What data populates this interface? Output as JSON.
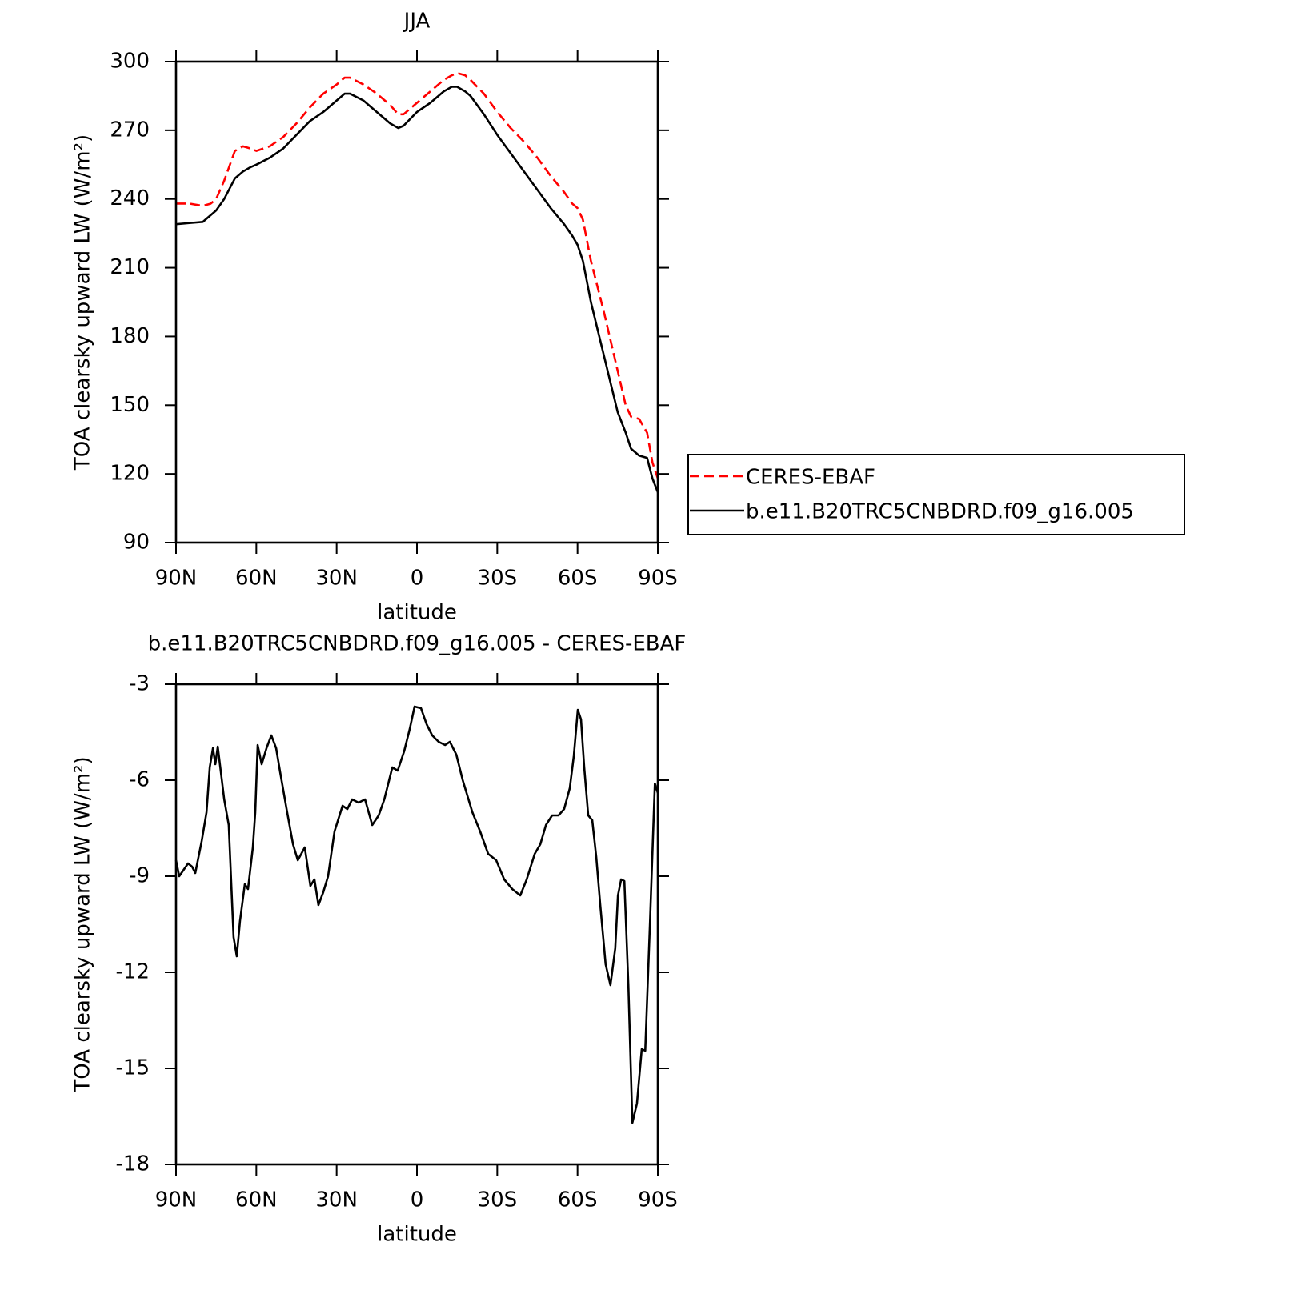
{
  "chart_data": [
    {
      "type": "line",
      "title": "JJA",
      "xlabel": "latitude",
      "ylabel": "TOA clearsky upward LW (W/m²)",
      "x": [
        90,
        85,
        80,
        77,
        75,
        72,
        68,
        65,
        62,
        60,
        55,
        50,
        45,
        40,
        35,
        30,
        27,
        25,
        20,
        15,
        10,
        7,
        5,
        0,
        -5,
        -10,
        -13,
        -15,
        -18,
        -20,
        -25,
        -30,
        -35,
        -40,
        -45,
        -50,
        -55,
        -58,
        -60,
        -62,
        -65,
        -70,
        -75,
        -78,
        -80,
        -83,
        -86,
        -88,
        -90
      ],
      "series": [
        {
          "name": "CERES-EBAF",
          "color": "#ff0000",
          "line_style": "dashed",
          "values": [
            238,
            238,
            237,
            238,
            240,
            248,
            261,
            263,
            262,
            261,
            263,
            267,
            273,
            280,
            286,
            290,
            293,
            293,
            290,
            286,
            281,
            277,
            277,
            282,
            287,
            292,
            294,
            295,
            294,
            292,
            286,
            278,
            271,
            265,
            258,
            250,
            243,
            238,
            236,
            231,
            213,
            190,
            165,
            150,
            145,
            144,
            138,
            125,
            118
          ]
        },
        {
          "name": "b.e11.B20TRC5CNBDRD.f09_g16.005",
          "color": "#000000",
          "line_style": "solid",
          "values": [
            229,
            229.5,
            230,
            233,
            235,
            240,
            249,
            252,
            254,
            255,
            258,
            262,
            268,
            274,
            278,
            283,
            286,
            286,
            283,
            278,
            273,
            271,
            272,
            278,
            282,
            287,
            289,
            289,
            287,
            285,
            277,
            268,
            260,
            252,
            244,
            236,
            229,
            224,
            220,
            213,
            195,
            171,
            147,
            138,
            131,
            128,
            127,
            118,
            112
          ]
        }
      ],
      "xlim": [
        90,
        -90
      ],
      "ylim": [
        90,
        300
      ],
      "xticks": [
        {
          "value": 90,
          "label": "90N"
        },
        {
          "value": 60,
          "label": "60N"
        },
        {
          "value": 30,
          "label": "30N"
        },
        0,
        {
          "value": -30,
          "label": "30S"
        },
        {
          "value": -60,
          "label": "60S"
        },
        {
          "value": -90,
          "label": "90S"
        }
      ],
      "yticks": [
        90,
        120,
        150,
        180,
        210,
        240,
        270,
        300
      ],
      "legend": "right"
    },
    {
      "type": "line",
      "title": "b.e11.B20TRC5CNBDRD.f09_g16.005 - CERES-EBAF",
      "xlabel": "latitude",
      "ylabel": "TOA clearsky upward LW (W/m²)",
      "x": [
        90,
        88.8,
        85.5,
        84,
        82.8,
        80.4,
        78.6,
        77.4,
        76.2,
        75.3,
        74.4,
        72,
        70.3,
        68.5,
        67.3,
        66.1,
        64.3,
        63.1,
        61.3,
        60.4,
        59.5,
        58,
        56.2,
        54.4,
        52.6,
        51.1,
        48.7,
        46.3,
        44.5,
        41.9,
        39.8,
        38.3,
        36.8,
        35,
        33.2,
        30.8,
        27.8,
        26,
        24.2,
        21.8,
        19.4,
        16.7,
        14.3,
        12.2,
        9.2,
        7.2,
        4.8,
        2.7,
        0.9,
        -1.5,
        -3.6,
        -5.7,
        -8.1,
        -10.5,
        -12.3,
        -14.7,
        -17.1,
        -20.7,
        -23.6,
        -26.6,
        -29.6,
        -32.6,
        -35.6,
        -38.6,
        -41,
        -44,
        -46.1,
        -48.2,
        -50.5,
        -52.9,
        -55,
        -57.1,
        -58.6,
        -60.1,
        -61.3,
        -62.5,
        -64,
        -65.5,
        -67,
        -68.5,
        -70.5,
        -72.3,
        -74.1,
        -75.1,
        -76.3,
        -77.5,
        -79,
        -80.5,
        -82.2,
        -84,
        -85.3,
        -87.1,
        -88.9,
        -90
      ],
      "series": [
        {
          "color": "#000000",
          "line_style": "solid",
          "values": [
            -8.5,
            -9.0,
            -8.6,
            -8.7,
            -8.9,
            -7.9,
            -7.0,
            -5.6,
            -5.0,
            -5.5,
            -4.95,
            -6.6,
            -7.4,
            -10.9,
            -11.5,
            -10.4,
            -9.25,
            -9.4,
            -8.1,
            -7.0,
            -4.9,
            -5.5,
            -5.0,
            -4.6,
            -5.0,
            -5.75,
            -6.9,
            -8.0,
            -8.5,
            -8.1,
            -9.3,
            -9.1,
            -9.9,
            -9.5,
            -9.0,
            -7.6,
            -6.8,
            -6.9,
            -6.6,
            -6.7,
            -6.6,
            -7.4,
            -7.1,
            -6.6,
            -5.6,
            -5.7,
            -5.1,
            -4.4,
            -3.7,
            -3.75,
            -4.25,
            -4.6,
            -4.8,
            -4.9,
            -4.8,
            -5.2,
            -6.0,
            -7.0,
            -7.6,
            -8.3,
            -8.5,
            -9.1,
            -9.4,
            -9.6,
            -9.1,
            -8.3,
            -8.0,
            -7.4,
            -7.1,
            -7.1,
            -6.9,
            -6.25,
            -5.25,
            -3.8,
            -4.1,
            -5.6,
            -7.1,
            -7.25,
            -8.4,
            -9.9,
            -11.75,
            -12.4,
            -11.25,
            -9.6,
            -9.1,
            -9.15,
            -12.4,
            -16.7,
            -16.1,
            -14.4,
            -14.45,
            -10.4,
            -6.1,
            -6.4
          ]
        }
      ],
      "xlim": [
        90,
        -90
      ],
      "ylim": [
        -18,
        -3
      ],
      "xticks": [
        {
          "value": 90,
          "label": "90N"
        },
        {
          "value": 60,
          "label": "60N"
        },
        {
          "value": 30,
          "label": "30N"
        },
        0,
        {
          "value": -30,
          "label": "30S"
        },
        {
          "value": -60,
          "label": "60S"
        },
        {
          "value": -90,
          "label": "90S"
        }
      ],
      "yticks": [
        -18,
        -15,
        -12,
        -9,
        -6,
        -3
      ]
    }
  ]
}
